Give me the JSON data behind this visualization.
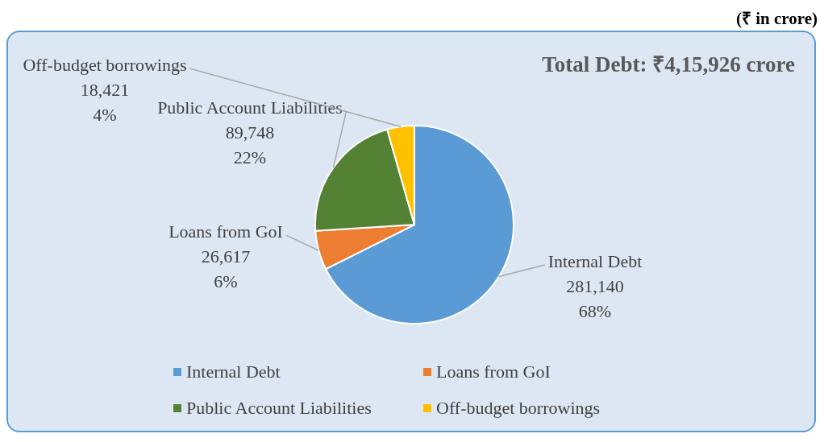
{
  "chart_data": {
    "type": "pie",
    "title": "Total Debt: ₹4,15,926 crore",
    "subtitle": "(₹ in crore)",
    "categories": [
      "Internal Debt",
      "Loans from GoI",
      "Public Account Liabilities",
      "Off-budget borrowings"
    ],
    "values": [
      281140,
      26617,
      89748,
      18421
    ],
    "colors": [
      "#5b9bd5",
      "#ed7d31",
      "#548235",
      "#ffc000"
    ],
    "value_labels": [
      "281,140\n68%",
      "26,617\n6%",
      "89,748\n22%",
      "18,421\n4%"
    ],
    "legend": "bottom"
  }
}
